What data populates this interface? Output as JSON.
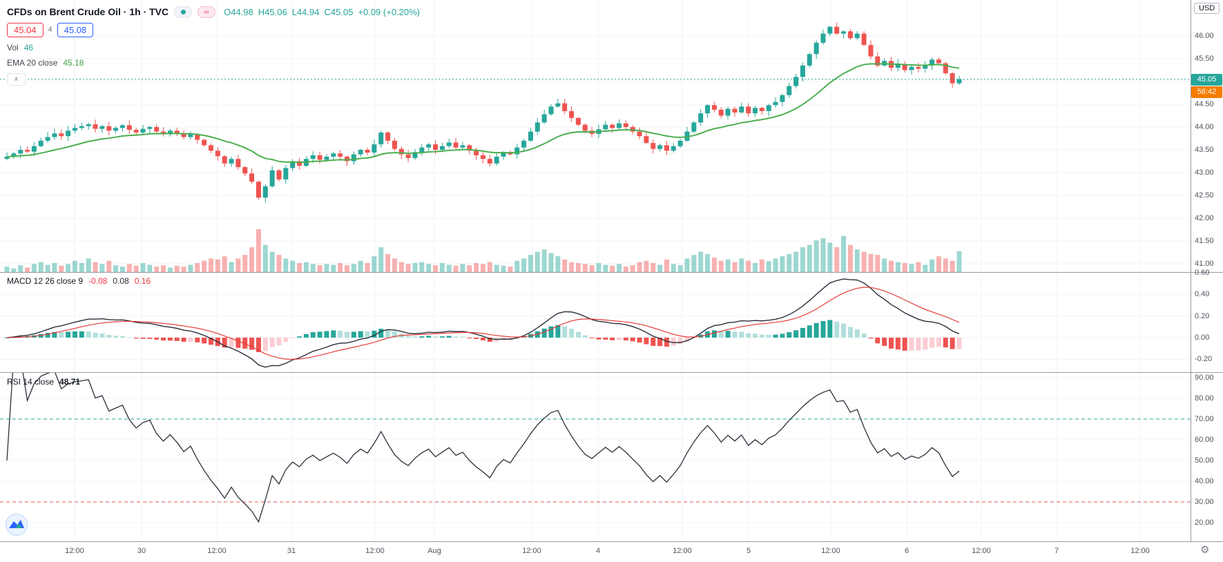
{
  "header": {
    "title": "CFDs on Brent Crude Oil · 1h · TVC",
    "icons": {
      "wave": "≈",
      "collapse": "∧",
      "gear": "⚙"
    },
    "ohlc": {
      "o": "O44.98",
      "h": "H45.06",
      "l": "L44.94",
      "c": "C45.05",
      "change": "+0.09 (+0.20%)"
    },
    "bid": "45.04",
    "spread": "4",
    "ask": "45.08",
    "vol_label": "Vol",
    "vol_value": "46",
    "ema_label": "EMA 20 close",
    "ema_value": "45.18"
  },
  "panes": {
    "macd": {
      "label": "MACD 12 26 close 9",
      "hist_value": "-0.08",
      "macd_value": "0.08",
      "signal_value": "0.16"
    },
    "rsi": {
      "label": "RSI 14 close",
      "value": "48.71"
    }
  },
  "axis": {
    "currency": "USD",
    "price_badge": "45.05",
    "countdown": "56:42"
  },
  "colors": {
    "up": "#26a69a",
    "down": "#ef5350",
    "vol_up": "rgba(38,166,154,0.45)",
    "vol_down": "rgba(239,83,80,0.45)",
    "ema": "#4caf50",
    "price_line": "#26a69a",
    "badge_price": "#26a69a",
    "badge_countdown": "#f57c00",
    "macd_line": "#2a2e39",
    "signal_line": "#e53935",
    "hist_up_strong": "#26a69a",
    "hist_up_weak": "#b2dfdb",
    "hist_down_strong": "#ef5350",
    "hist_down_weak": "#fbcdd2",
    "rsi_line": "#2a2e39",
    "band_upper": "#26a69a",
    "band_lower": "#ef5350",
    "grid": "#f0f3fa"
  },
  "chart_data": {
    "type": "candlestick",
    "title": "CFDs on Brent Crude Oil · 1h · TVC",
    "x_ticks": [
      "12:00",
      "30",
      "12:00",
      "31",
      "12:00",
      "Aug",
      "12:00",
      "4",
      "12:00",
      "5",
      "12:00",
      "6",
      "12:00",
      "7",
      "12:00"
    ],
    "price_ticks": [
      "46.00",
      "45.50",
      "45.00",
      "44.50",
      "44.00",
      "43.50",
      "43.00",
      "42.50",
      "42.00",
      "41.50",
      "41.00"
    ],
    "ylim": [
      40.8,
      46.8
    ],
    "current_price": 45.05,
    "ema_period": 20,
    "first_open": 43.3,
    "closes": [
      43.35,
      43.42,
      43.5,
      43.46,
      43.58,
      43.7,
      43.78,
      43.86,
      43.8,
      43.92,
      43.98,
      44.02,
      44.06,
      43.96,
      44.02,
      43.92,
      43.98,
      44.04,
      43.94,
      43.88,
      43.96,
      44.0,
      43.9,
      43.84,
      43.92,
      43.86,
      43.78,
      43.84,
      43.72,
      43.6,
      43.48,
      43.36,
      43.2,
      43.3,
      43.12,
      42.98,
      42.8,
      42.45,
      42.7,
      43.05,
      42.85,
      43.1,
      43.25,
      43.15,
      43.3,
      43.38,
      43.28,
      43.35,
      43.42,
      43.35,
      43.25,
      43.4,
      43.5,
      43.44,
      43.62,
      43.88,
      43.7,
      43.52,
      43.4,
      43.32,
      43.45,
      43.55,
      43.62,
      43.5,
      43.58,
      43.66,
      43.55,
      43.6,
      43.48,
      43.38,
      43.3,
      43.2,
      43.35,
      43.45,
      43.4,
      43.55,
      43.7,
      43.9,
      44.1,
      44.28,
      44.45,
      44.52,
      44.35,
      44.2,
      44.05,
      43.92,
      43.85,
      43.95,
      44.05,
      43.98,
      44.08,
      44.0,
      43.9,
      43.8,
      43.65,
      43.52,
      43.6,
      43.48,
      43.58,
      43.7,
      43.9,
      44.1,
      44.3,
      44.48,
      44.38,
      44.25,
      44.4,
      44.32,
      44.45,
      44.3,
      44.42,
      44.35,
      44.48,
      44.55,
      44.7,
      44.9,
      45.1,
      45.35,
      45.6,
      45.85,
      46.05,
      46.2,
      46.05,
      46.1,
      45.95,
      46.05,
      45.8,
      45.55,
      45.35,
      45.45,
      45.3,
      45.38,
      45.25,
      45.32,
      45.28,
      45.35,
      45.48,
      45.4,
      45.18,
      44.96,
      45.05
    ],
    "volumes": [
      12,
      8,
      15,
      10,
      18,
      22,
      16,
      20,
      14,
      18,
      25,
      20,
      30,
      22,
      18,
      25,
      15,
      12,
      18,
      14,
      20,
      16,
      12,
      15,
      10,
      14,
      12,
      16,
      20,
      25,
      30,
      28,
      35,
      22,
      30,
      38,
      55,
      95,
      60,
      45,
      38,
      30,
      25,
      20,
      22,
      18,
      15,
      18,
      16,
      20,
      15,
      18,
      25,
      20,
      35,
      55,
      40,
      30,
      22,
      18,
      20,
      22,
      18,
      15,
      20,
      16,
      14,
      18,
      15,
      20,
      18,
      22,
      16,
      14,
      12,
      25,
      30,
      38,
      45,
      50,
      42,
      35,
      28,
      22,
      20,
      18,
      15,
      20,
      16,
      14,
      18,
      12,
      15,
      22,
      25,
      20,
      16,
      28,
      18,
      15,
      30,
      38,
      45,
      40,
      32,
      25,
      28,
      22,
      30,
      25,
      20,
      28,
      24,
      30,
      35,
      40,
      45,
      55,
      60,
      70,
      75,
      65,
      55,
      80,
      60,
      50,
      45,
      40,
      38,
      30,
      25,
      22,
      20,
      18,
      22,
      16,
      28,
      35,
      30,
      25,
      46
    ],
    "macd": {
      "fast": 12,
      "slow": 26,
      "signal": 9,
      "ticks": [
        "0.60",
        "0.40",
        "0.20",
        "0.00",
        "-0.20"
      ],
      "ylim": [
        -0.3,
        0.6
      ]
    },
    "rsi": {
      "period": 14,
      "ticks": [
        "90.00",
        "80.00",
        "70.00",
        "60.00",
        "50.00",
        "40.00",
        "30.00",
        "20.00"
      ],
      "bands": [
        70,
        30
      ],
      "ylim": [
        20,
        90
      ]
    }
  }
}
